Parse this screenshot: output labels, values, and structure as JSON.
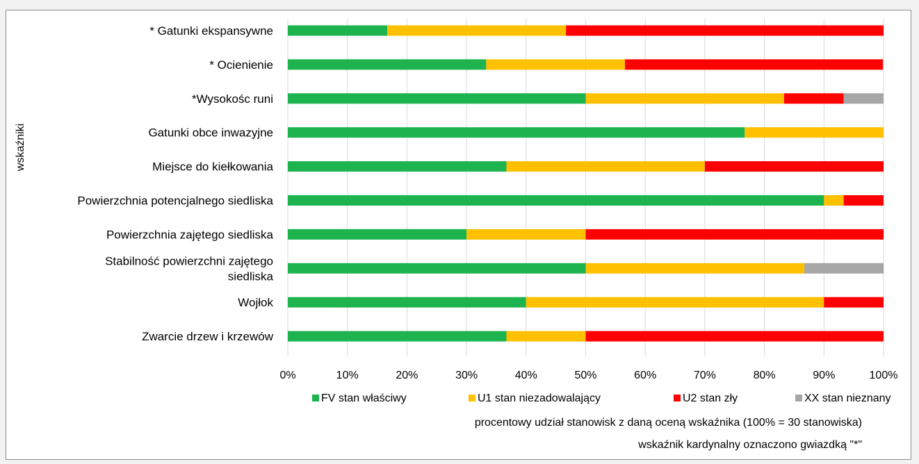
{
  "chart_data": {
    "type": "bar",
    "orientation": "horizontal",
    "stacked": "percent",
    "ylabel": "wskaźniki",
    "xlim": [
      0,
      100
    ],
    "x_ticks": [
      "0%",
      "10%",
      "20%",
      "30%",
      "40%",
      "50%",
      "60%",
      "70%",
      "80%",
      "90%",
      "100%"
    ],
    "grid": true,
    "legend_position": "bottom",
    "categories": [
      [
        "* Gatunki ekspansywne"
      ],
      [
        "* Ocienienie"
      ],
      [
        "*Wysokośc runi"
      ],
      [
        "Gatunki obce inwazyjne"
      ],
      [
        "Miejsce do kiełkowania"
      ],
      [
        "Powierzchnia potencjalnego siedliska"
      ],
      [
        "Powierzchnia zajętego siedliska"
      ],
      [
        "Stabilność powierzchni zajętego",
        "siedliska"
      ],
      [
        "Wojłok"
      ],
      [
        "Zwarcie drzew i krzewów"
      ]
    ],
    "series": [
      {
        "name": "FV stan właściwy",
        "color": "#1db34f",
        "values": [
          16.7,
          33.3,
          50.0,
          76.7,
          36.7,
          90.0,
          30.0,
          50.0,
          40.0,
          36.7
        ]
      },
      {
        "name": "U1 stan niezadowalający",
        "color": "#ffc000",
        "values": [
          30.0,
          23.3,
          33.3,
          23.3,
          33.3,
          3.3,
          20.0,
          36.7,
          50.0,
          13.3
        ]
      },
      {
        "name": "U2 stan zły",
        "color": "#ff0000",
        "values": [
          53.3,
          43.3,
          10.0,
          0,
          30.0,
          6.7,
          50.0,
          0,
          10.0,
          50.0
        ]
      },
      {
        "name": "XX stan nieznany",
        "color": "#a6a6a6",
        "values": [
          0,
          0,
          6.7,
          0,
          0,
          0,
          0,
          13.3,
          0,
          0
        ]
      }
    ]
  },
  "notes": {
    "line1": "procentowy udział stanowisk z daną oceną wskaźnika (100% = 30 stanowiska)",
    "line2": "wskaźnik kardynalny oznaczono gwiazdką \"*\""
  }
}
